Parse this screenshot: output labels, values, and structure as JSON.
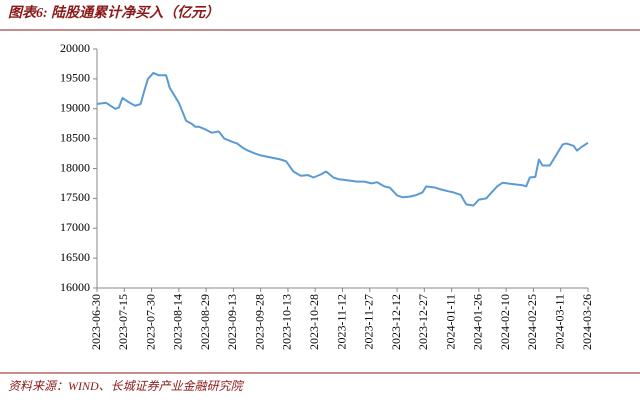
{
  "chart_data": {
    "type": "line",
    "title": "图表6:  陆股通累计净买入（亿元）",
    "source": "资料来源：WIND、长城证券产业金融研究院",
    "x": [
      "2023-06-30",
      "2023-07-05",
      "2023-07-10",
      "2023-07-12",
      "2023-07-14",
      "2023-07-18",
      "2023-07-21",
      "2023-07-24",
      "2023-07-26",
      "2023-07-28",
      "2023-07-31",
      "2023-08-03",
      "2023-08-07",
      "2023-08-09",
      "2023-08-11",
      "2023-08-14",
      "2023-08-16",
      "2023-08-18",
      "2023-08-21",
      "2023-08-23",
      "2023-08-25",
      "2023-08-29",
      "2023-09-01",
      "2023-09-05",
      "2023-09-08",
      "2023-09-12",
      "2023-09-15",
      "2023-09-18",
      "2023-09-21",
      "2023-09-25",
      "2023-09-28",
      "2023-10-09",
      "2023-10-12",
      "2023-10-16",
      "2023-10-20",
      "2023-10-24",
      "2023-10-27",
      "2023-10-31",
      "2023-11-03",
      "2023-11-07",
      "2023-11-10",
      "2023-11-15",
      "2023-11-20",
      "2023-11-24",
      "2023-11-28",
      "2023-12-01",
      "2023-12-05",
      "2023-12-08",
      "2023-12-12",
      "2023-12-15",
      "2023-12-19",
      "2023-12-22",
      "2023-12-26",
      "2023-12-28",
      "2024-01-02",
      "2024-01-05",
      "2024-01-09",
      "2024-01-12",
      "2024-01-16",
      "2024-01-19",
      "2024-01-23",
      "2024-01-26",
      "2024-01-30",
      "2024-02-02",
      "2024-02-05",
      "2024-02-08",
      "2024-02-19",
      "2024-02-21",
      "2024-02-23",
      "2024-02-26",
      "2024-02-28",
      "2024-03-01",
      "2024-03-05",
      "2024-03-08",
      "2024-03-12",
      "2024-03-14",
      "2024-03-18",
      "2024-03-20",
      "2024-03-22",
      "2024-03-26"
    ],
    "series": [
      {
        "color": "#5b9bd5",
        "values": [
          19080,
          19100,
          19000,
          19020,
          19180,
          19100,
          19050,
          19080,
          19300,
          19500,
          19600,
          19560,
          19560,
          19350,
          19250,
          19100,
          18950,
          18800,
          18750,
          18700,
          18700,
          18650,
          18600,
          18620,
          18500,
          18450,
          18420,
          18350,
          18300,
          18250,
          18220,
          18150,
          18120,
          17950,
          17880,
          17890,
          17850,
          17900,
          17950,
          17850,
          17820,
          17800,
          17780,
          17780,
          17750,
          17770,
          17700,
          17680,
          17550,
          17520,
          17530,
          17550,
          17600,
          17700,
          17680,
          17650,
          17620,
          17600,
          17560,
          17400,
          17380,
          17480,
          17500,
          17600,
          17700,
          17760,
          17720,
          17700,
          17850,
          17860,
          18150,
          18050,
          18050,
          18200,
          18400,
          18420,
          18380,
          18300,
          18350,
          18430
        ]
      }
    ],
    "xlim": [
      "2023-06-30",
      "2024-03-26"
    ],
    "xticks": [
      "2023-06-30",
      "2023-07-15",
      "2023-07-30",
      "2023-08-14",
      "2023-08-29",
      "2023-09-13",
      "2023-09-28",
      "2023-10-13",
      "2023-10-28",
      "2023-11-12",
      "2023-11-27",
      "2023-12-12",
      "2023-12-27",
      "2024-01-11",
      "2024-01-26",
      "2024-02-10",
      "2024-02-25",
      "2024-03-11",
      "2024-03-26"
    ],
    "ylim": [
      16000,
      20000
    ],
    "yticks": [
      16000,
      16500,
      17000,
      17500,
      18000,
      18500,
      19000,
      19500,
      20000
    ],
    "grid": false
  }
}
